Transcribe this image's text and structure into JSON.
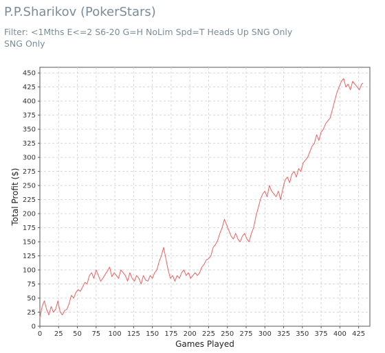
{
  "header": {
    "title": "P.P.Sharikov (PokerStars)",
    "filter": "Filter: <1Mths E<=2 S6-20 G=H NoLim Spd=T Heads Up SNG Only SNG Only"
  },
  "colors": {
    "line": "#ef5f5f",
    "grid": "#d6d6d6",
    "axis": "#555555",
    "header_text": "#7a8c99"
  },
  "chart_data": {
    "type": "line",
    "xlabel": "Games Played",
    "ylabel": "Total Profit ($)",
    "xlim": [
      0,
      440
    ],
    "ylim": [
      0,
      460
    ],
    "xticks": [
      0,
      25,
      50,
      75,
      100,
      125,
      150,
      175,
      200,
      225,
      250,
      275,
      300,
      325,
      350,
      375,
      400,
      425
    ],
    "yticks": [
      0,
      25,
      50,
      75,
      100,
      125,
      150,
      175,
      200,
      225,
      250,
      275,
      300,
      325,
      350,
      375,
      400,
      425,
      450
    ],
    "grid": true,
    "legend": "none",
    "series": [
      {
        "x": [
          0,
          3,
          6,
          9,
          12,
          15,
          18,
          21,
          24,
          27,
          30,
          33,
          36,
          39,
          42,
          45,
          48,
          51,
          54,
          57,
          60,
          63,
          66,
          69,
          72,
          75,
          78,
          81,
          84,
          87,
          90,
          93,
          96,
          99,
          102,
          105,
          108,
          111,
          114,
          117,
          120,
          123,
          126,
          129,
          132,
          135,
          138,
          141,
          144,
          147,
          150,
          153,
          156,
          159,
          162,
          165,
          168,
          171,
          174,
          177,
          180,
          183,
          186,
          189,
          192,
          195,
          198,
          201,
          204,
          207,
          210,
          213,
          216,
          219,
          222,
          225,
          228,
          231,
          234,
          237,
          240,
          243,
          246,
          249,
          252,
          255,
          258,
          261,
          264,
          267,
          270,
          273,
          276,
          279,
          282,
          285,
          288,
          291,
          294,
          297,
          300,
          303,
          306,
          309,
          312,
          315,
          318,
          321,
          324,
          327,
          330,
          333,
          336,
          339,
          342,
          345,
          348,
          351,
          354,
          357,
          360,
          363,
          366,
          369,
          372,
          375,
          378,
          381,
          384,
          387,
          390,
          393,
          396,
          399,
          402,
          405,
          408,
          411,
          414,
          417,
          420,
          423,
          426,
          429,
          431
        ],
        "y": [
          15,
          35,
          45,
          30,
          20,
          35,
          25,
          30,
          45,
          25,
          20,
          28,
          30,
          40,
          55,
          50,
          60,
          65,
          62,
          70,
          78,
          75,
          90,
          95,
          85,
          100,
          90,
          80,
          85,
          92,
          98,
          105,
          88,
          95,
          90,
          85,
          100,
          95,
          90,
          80,
          95,
          85,
          80,
          90,
          85,
          75,
          90,
          82,
          80,
          90,
          85,
          95,
          100,
          115,
          125,
          140,
          120,
          100,
          85,
          90,
          80,
          90,
          85,
          95,
          100,
          90,
          95,
          85,
          90,
          95,
          90,
          95,
          105,
          110,
          118,
          120,
          125,
          140,
          145,
          152,
          165,
          175,
          190,
          180,
          170,
          160,
          155,
          165,
          155,
          150,
          160,
          165,
          155,
          150,
          165,
          175,
          195,
          210,
          225,
          235,
          240,
          230,
          250,
          240,
          235,
          230,
          240,
          225,
          245,
          260,
          265,
          255,
          270,
          275,
          265,
          280,
          275,
          290,
          295,
          300,
          310,
          320,
          325,
          340,
          330,
          345,
          350,
          360,
          365,
          370,
          385,
          400,
          415,
          425,
          435,
          440,
          425,
          430,
          420,
          435,
          430,
          425,
          420,
          430,
          432
        ]
      }
    ]
  }
}
